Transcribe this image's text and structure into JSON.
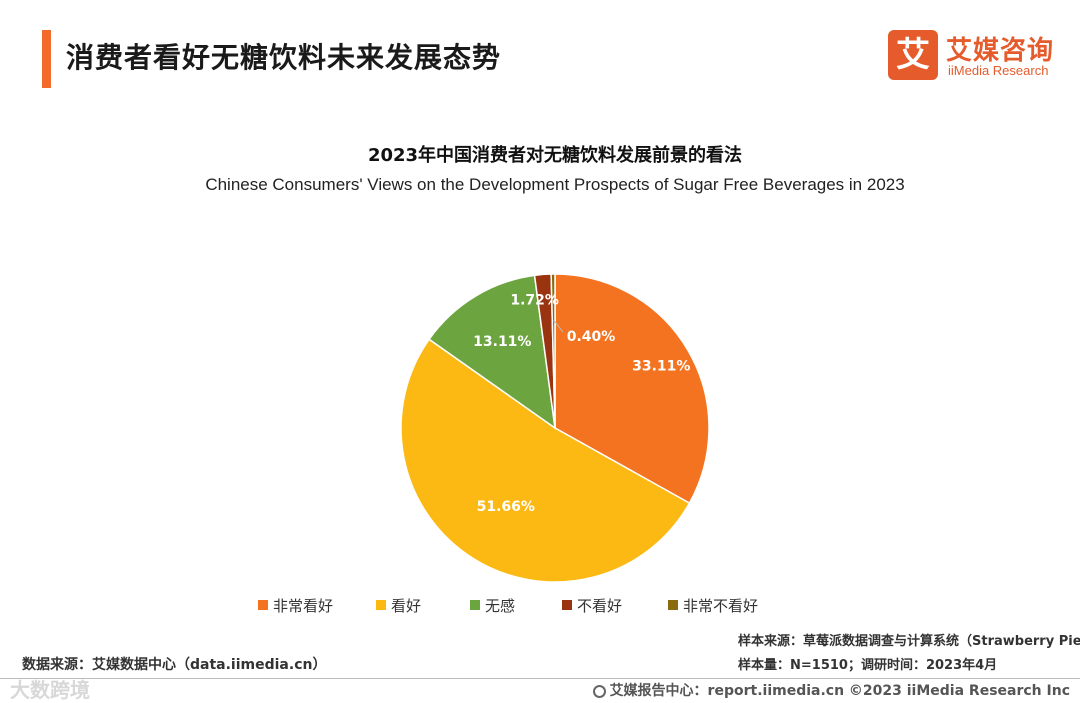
{
  "header": {
    "title": "消费者看好无糖饮料未来发展态势",
    "logo_mark": "艾",
    "logo_cn": "艾媒咨询",
    "logo_en": "iiMedia Research"
  },
  "colors": {
    "accent": "#F26B2B",
    "logo": "#E55B2C"
  },
  "chart_data": {
    "type": "pie",
    "title": "2023年中国消费者对无糖饮料发展前景的看法",
    "subtitle": "Chinese Consumers' Views on the Development Prospects of Sugar Free Beverages in 2023",
    "unit": "%",
    "legend_position": "bottom",
    "slices": [
      {
        "label": "非常看好",
        "value": 33.11,
        "display": "33.11%",
        "color": "#F47321"
      },
      {
        "label": "看好",
        "value": 51.66,
        "display": "51.66%",
        "color": "#FDB913"
      },
      {
        "label": "无感",
        "value": 13.11,
        "display": "13.11%",
        "color": "#6CA53F"
      },
      {
        "label": "不看好",
        "value": 1.72,
        "display": "1.72%",
        "color": "#9A3410"
      },
      {
        "label": "非常不看好",
        "value": 0.4,
        "display": "0.40%",
        "color": "#8C6B0C"
      }
    ]
  },
  "notes": {
    "sample_source": "样本来源：草莓派数据调查与计算系统（Strawberry Pie）",
    "sample_size": "样本量：N=1510；调研时间：2023年4月",
    "data_source": "数据来源：艾媒数据中心（data.iimedia.cn）"
  },
  "watermark": "大数跨境",
  "footer": {
    "text": "艾媒报告中心：report.iimedia.cn   ©2023  iiMedia Research  Inc"
  }
}
